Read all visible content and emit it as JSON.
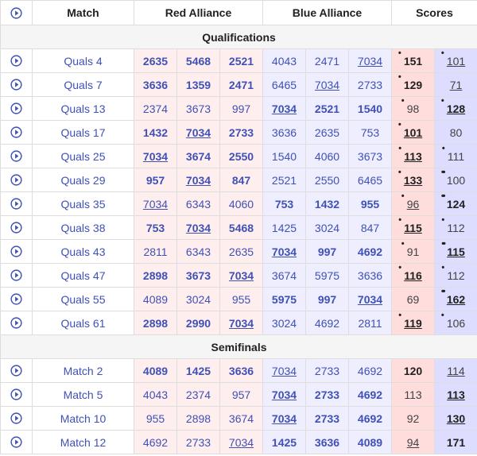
{
  "table": {
    "columns": {
      "match": "Match",
      "red": "Red Alliance",
      "blue": "Blue Alliance",
      "scores": "Scores"
    }
  },
  "highlighted_team": "7034",
  "colors": {
    "link": "#3f51b5",
    "red_cell": "#ffeeee",
    "blue_cell": "#eeeeff",
    "red_score_cell": "#ffdddd",
    "blue_score_cell": "#ddddff",
    "section_bg": "#f5f5f5",
    "border": "#dddddd",
    "text": "#212121"
  },
  "icons": {
    "header": "play-circle-icon",
    "row": "play-circle-icon"
  },
  "sections": [
    {
      "title": "Qualifications",
      "rows": [
        {
          "match": "Quals 4",
          "red": [
            {
              "team": "2635",
              "bold": true
            },
            {
              "team": "5468",
              "bold": true
            },
            {
              "team": "2521",
              "bold": true
            }
          ],
          "blue": [
            {
              "team": "4043"
            },
            {
              "team": "2471"
            },
            {
              "team": "7034",
              "underline": true
            }
          ],
          "red_score": {
            "value": "151",
            "bold": true,
            "dots": 1
          },
          "blue_score": {
            "value": "101",
            "underline": true,
            "dots": 1
          }
        },
        {
          "match": "Quals 7",
          "red": [
            {
              "team": "3636",
              "bold": true
            },
            {
              "team": "1359",
              "bold": true
            },
            {
              "team": "2471",
              "bold": true
            }
          ],
          "blue": [
            {
              "team": "6465"
            },
            {
              "team": "7034",
              "underline": true
            },
            {
              "team": "2733"
            }
          ],
          "red_score": {
            "value": "129",
            "bold": true,
            "dots": 1
          },
          "blue_score": {
            "value": "71",
            "underline": true,
            "dots": 0
          }
        },
        {
          "match": "Quals 13",
          "red": [
            {
              "team": "2374"
            },
            {
              "team": "3673"
            },
            {
              "team": "997"
            }
          ],
          "blue": [
            {
              "team": "7034",
              "bold": true,
              "underline": true
            },
            {
              "team": "2521",
              "bold": true
            },
            {
              "team": "1540",
              "bold": true
            }
          ],
          "red_score": {
            "value": "98",
            "dots": 1
          },
          "blue_score": {
            "value": "128",
            "bold": true,
            "underline": true,
            "dots": 1
          }
        },
        {
          "match": "Quals 17",
          "red": [
            {
              "team": "1432",
              "bold": true
            },
            {
              "team": "7034",
              "bold": true,
              "underline": true
            },
            {
              "team": "2733",
              "bold": true
            }
          ],
          "blue": [
            {
              "team": "3636"
            },
            {
              "team": "2635"
            },
            {
              "team": "753"
            }
          ],
          "red_score": {
            "value": "101",
            "bold": true,
            "underline": true,
            "dots": 1
          },
          "blue_score": {
            "value": "80",
            "dots": 0
          }
        },
        {
          "match": "Quals 25",
          "red": [
            {
              "team": "7034",
              "bold": true,
              "underline": true
            },
            {
              "team": "3674",
              "bold": true
            },
            {
              "team": "2550",
              "bold": true
            }
          ],
          "blue": [
            {
              "team": "1540"
            },
            {
              "team": "4060"
            },
            {
              "team": "3673"
            }
          ],
          "red_score": {
            "value": "113",
            "bold": true,
            "underline": true,
            "dots": 1
          },
          "blue_score": {
            "value": "111",
            "dots": 1
          }
        },
        {
          "match": "Quals 29",
          "red": [
            {
              "team": "957",
              "bold": true
            },
            {
              "team": "7034",
              "bold": true,
              "underline": true
            },
            {
              "team": "847",
              "bold": true
            }
          ],
          "blue": [
            {
              "team": "2521"
            },
            {
              "team": "2550"
            },
            {
              "team": "6465"
            }
          ],
          "red_score": {
            "value": "133",
            "bold": true,
            "underline": true,
            "dots": 1
          },
          "blue_score": {
            "value": "100",
            "dots": 2
          }
        },
        {
          "match": "Quals 35",
          "red": [
            {
              "team": "7034",
              "underline": true
            },
            {
              "team": "6343"
            },
            {
              "team": "4060"
            }
          ],
          "blue": [
            {
              "team": "753",
              "bold": true
            },
            {
              "team": "1432",
              "bold": true
            },
            {
              "team": "955",
              "bold": true
            }
          ],
          "red_score": {
            "value": "96",
            "underline": true,
            "dots": 1
          },
          "blue_score": {
            "value": "124",
            "bold": true,
            "dots": 2
          }
        },
        {
          "match": "Quals 38",
          "red": [
            {
              "team": "753",
              "bold": true
            },
            {
              "team": "7034",
              "bold": true,
              "underline": true
            },
            {
              "team": "5468",
              "bold": true
            }
          ],
          "blue": [
            {
              "team": "1425"
            },
            {
              "team": "3024"
            },
            {
              "team": "847"
            }
          ],
          "red_score": {
            "value": "115",
            "bold": true,
            "underline": true,
            "dots": 1
          },
          "blue_score": {
            "value": "112",
            "dots": 1
          }
        },
        {
          "match": "Quals 43",
          "red": [
            {
              "team": "2811"
            },
            {
              "team": "6343"
            },
            {
              "team": "2635"
            }
          ],
          "blue": [
            {
              "team": "7034",
              "bold": true,
              "underline": true
            },
            {
              "team": "997",
              "bold": true
            },
            {
              "team": "4692",
              "bold": true
            }
          ],
          "red_score": {
            "value": "91",
            "dots": 1
          },
          "blue_score": {
            "value": "115",
            "bold": true,
            "underline": true,
            "dots": 2
          }
        },
        {
          "match": "Quals 47",
          "red": [
            {
              "team": "2898",
              "bold": true
            },
            {
              "team": "3673",
              "bold": true
            },
            {
              "team": "7034",
              "bold": true,
              "underline": true
            }
          ],
          "blue": [
            {
              "team": "3674"
            },
            {
              "team": "5975"
            },
            {
              "team": "3636"
            }
          ],
          "red_score": {
            "value": "116",
            "bold": true,
            "underline": true,
            "dots": 1
          },
          "blue_score": {
            "value": "112",
            "dots": 1
          }
        },
        {
          "match": "Quals 55",
          "red": [
            {
              "team": "4089"
            },
            {
              "team": "3024"
            },
            {
              "team": "955"
            }
          ],
          "blue": [
            {
              "team": "5975",
              "bold": true
            },
            {
              "team": "997",
              "bold": true
            },
            {
              "team": "7034",
              "bold": true,
              "underline": true
            }
          ],
          "red_score": {
            "value": "69",
            "dots": 0
          },
          "blue_score": {
            "value": "162",
            "bold": true,
            "underline": true,
            "dots": 2
          }
        },
        {
          "match": "Quals 61",
          "red": [
            {
              "team": "2898",
              "bold": true
            },
            {
              "team": "2990",
              "bold": true
            },
            {
              "team": "7034",
              "bold": true,
              "underline": true
            }
          ],
          "blue": [
            {
              "team": "3024"
            },
            {
              "team": "4692"
            },
            {
              "team": "2811"
            }
          ],
          "red_score": {
            "value": "119",
            "bold": true,
            "underline": true,
            "dots": 1
          },
          "blue_score": {
            "value": "106",
            "dots": 1
          }
        }
      ]
    },
    {
      "title": "Semifinals",
      "rows": [
        {
          "match": "Match 2",
          "red": [
            {
              "team": "4089",
              "bold": true
            },
            {
              "team": "1425",
              "bold": true
            },
            {
              "team": "3636",
              "bold": true
            }
          ],
          "blue": [
            {
              "team": "7034",
              "underline": true
            },
            {
              "team": "2733"
            },
            {
              "team": "4692"
            }
          ],
          "red_score": {
            "value": "120",
            "bold": true,
            "dots": 0
          },
          "blue_score": {
            "value": "114",
            "underline": true,
            "dots": 0
          }
        },
        {
          "match": "Match 5",
          "red": [
            {
              "team": "4043"
            },
            {
              "team": "2374"
            },
            {
              "team": "957"
            }
          ],
          "blue": [
            {
              "team": "7034",
              "bold": true,
              "underline": true
            },
            {
              "team": "2733",
              "bold": true
            },
            {
              "team": "4692",
              "bold": true
            }
          ],
          "red_score": {
            "value": "113",
            "dots": 0
          },
          "blue_score": {
            "value": "113",
            "bold": true,
            "underline": true,
            "dots": 0
          }
        },
        {
          "match": "Match 10",
          "red": [
            {
              "team": "955"
            },
            {
              "team": "2898"
            },
            {
              "team": "3674"
            }
          ],
          "blue": [
            {
              "team": "7034",
              "bold": true,
              "underline": true
            },
            {
              "team": "2733",
              "bold": true
            },
            {
              "team": "4692",
              "bold": true
            }
          ],
          "red_score": {
            "value": "92",
            "dots": 0
          },
          "blue_score": {
            "value": "130",
            "bold": true,
            "underline": true,
            "dots": 0
          }
        },
        {
          "match": "Match 12",
          "red": [
            {
              "team": "4692"
            },
            {
              "team": "2733"
            },
            {
              "team": "7034",
              "underline": true
            }
          ],
          "blue": [
            {
              "team": "1425",
              "bold": true
            },
            {
              "team": "3636",
              "bold": true
            },
            {
              "team": "4089",
              "bold": true
            }
          ],
          "red_score": {
            "value": "94",
            "underline": true,
            "dots": 0
          },
          "blue_score": {
            "value": "171",
            "bold": true,
            "dots": 0
          }
        }
      ]
    }
  ]
}
